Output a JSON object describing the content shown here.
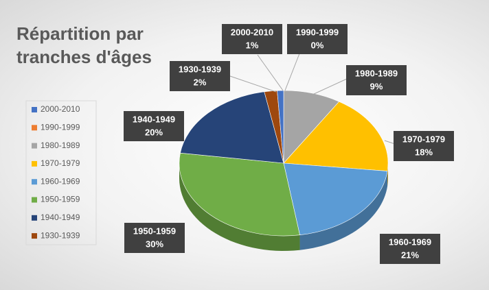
{
  "chart_data": {
    "type": "pie",
    "title": "Répartition par tranches d'âges",
    "categories": [
      "2000-2010",
      "1990-1999",
      "1980-1989",
      "1970-1979",
      "1960-1969",
      "1950-1959",
      "1940-1949",
      "1930-1939"
    ],
    "values": [
      1,
      0,
      9,
      18,
      21,
      30,
      20,
      2
    ],
    "value_labels": [
      "1%",
      "0%",
      "9%",
      "18%",
      "21%",
      "30%",
      "20%",
      "2%"
    ],
    "colors": [
      "#4472c4",
      "#ed7d31",
      "#a5a5a5",
      "#ffc000",
      "#5b9bd5",
      "#70ad47",
      "#264478",
      "#9e480e"
    ],
    "legend": "left"
  }
}
